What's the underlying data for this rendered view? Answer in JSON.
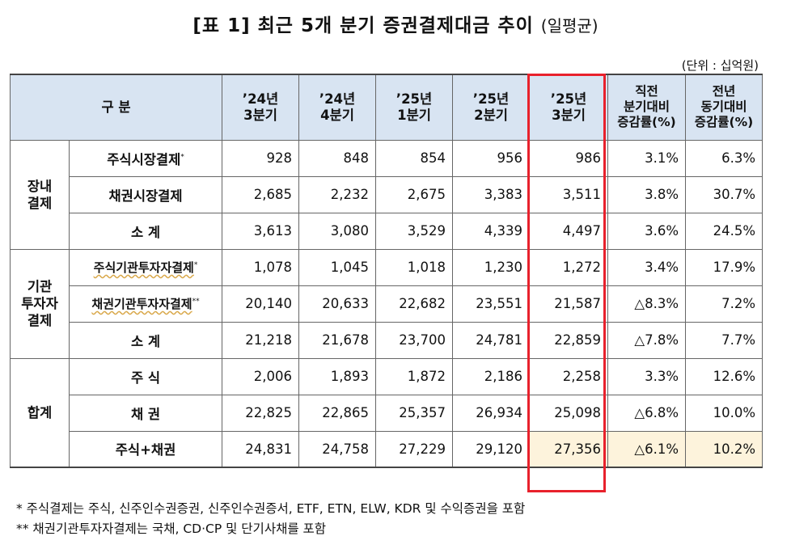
{
  "title_main": "[표  1] 최근 5개 분기 증권결제대금 추이",
  "title_paren": "(일평균)",
  "unit": "(단위 : 십억원)",
  "header": {
    "division": "구    분",
    "q1": [
      "’24년",
      "3분기"
    ],
    "q2": [
      "’24년",
      "4분기"
    ],
    "q3": [
      "’25년",
      "1분기"
    ],
    "q4": [
      "’25년",
      "2분기"
    ],
    "q5": [
      "’25년",
      "3분기"
    ],
    "qoq": [
      "직전",
      "분기대비",
      "증감률(%)"
    ],
    "yoy": [
      "전년",
      "동기대비",
      "증감률(%)"
    ]
  },
  "groups": {
    "onexchange": [
      "장내",
      "결제"
    ],
    "institutional": [
      "기관",
      "투자자",
      "결제"
    ],
    "total": "합계"
  },
  "rows": [
    {
      "label": "주식시장결제",
      "mark": "*",
      "values": [
        "928",
        "848",
        "854",
        "956",
        "986"
      ],
      "qoq": "3.1%",
      "yoy": "6.3%"
    },
    {
      "label": "채권시장결제",
      "mark": "",
      "values": [
        "2,685",
        "2,232",
        "2,675",
        "3,383",
        "3,511"
      ],
      "qoq": "3.8%",
      "yoy": "30.7%"
    },
    {
      "label": "소  계",
      "mark": "",
      "values": [
        "3,613",
        "3,080",
        "3,529",
        "4,339",
        "4,497"
      ],
      "qoq": "3.6%",
      "yoy": "24.5%"
    },
    {
      "label": "주식기관투자자결제",
      "mark": "*",
      "values": [
        "1,078",
        "1,045",
        "1,018",
        "1,230",
        "1,272"
      ],
      "qoq": "3.4%",
      "yoy": "17.9%"
    },
    {
      "label": "채권기관투자자결제",
      "mark": "**",
      "values": [
        "20,140",
        "20,633",
        "22,682",
        "23,551",
        "21,587"
      ],
      "qoq": "△8.3%",
      "yoy": "7.2%"
    },
    {
      "label": "소  계",
      "mark": "",
      "values": [
        "21,218",
        "21,678",
        "23,700",
        "24,781",
        "22,859"
      ],
      "qoq": "△7.8%",
      "yoy": "7.7%"
    },
    {
      "label": "주  식",
      "mark": "",
      "values": [
        "2,006",
        "1,893",
        "1,872",
        "2,186",
        "2,258"
      ],
      "qoq": "3.3%",
      "yoy": "12.6%"
    },
    {
      "label": "채  권",
      "mark": "",
      "values": [
        "22,825",
        "22,865",
        "25,357",
        "26,934",
        "25,098"
      ],
      "qoq": "△6.8%",
      "yoy": "10.0%"
    },
    {
      "label": "주식+채권",
      "mark": "",
      "values": [
        "24,831",
        "24,758",
        "27,229",
        "29,120",
        "27,356"
      ],
      "qoq": "△6.1%",
      "yoy": "10.2%"
    }
  ],
  "notes": [
    "*  주식결제는 주식, 신주인수권증권, 신주인수권증서, ETF, ETN, ELW, KDR 및 수익증권을 포함",
    "**  채권기관투자자결제는 국채, CD·CP 및 단기사채를 포함"
  ],
  "colors": {
    "header_bg": "#d8e4f2",
    "highlight_border": "#e8212c",
    "total_fill": "#fdf3dc"
  }
}
